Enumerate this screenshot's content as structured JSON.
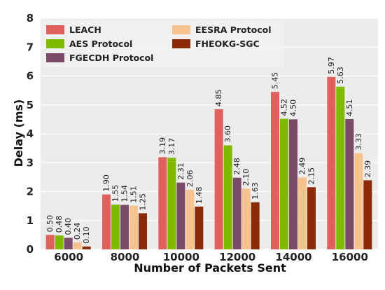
{
  "chart_data": {
    "type": "bar",
    "title": "",
    "xlabel": "Number of Packets Sent",
    "ylabel": "Delay (ms)",
    "ylim": [
      0,
      8
    ],
    "yticks": [
      0,
      1,
      2,
      3,
      4,
      5,
      6,
      7,
      8
    ],
    "grid": true,
    "legend_position": "top-left",
    "categories": [
      "6000",
      "8000",
      "10000",
      "12000",
      "14000",
      "16000"
    ],
    "series": [
      {
        "name": "LEACH",
        "color": "#e0605e",
        "values": [
          0.5,
          1.9,
          3.19,
          4.85,
          5.45,
          5.97
        ]
      },
      {
        "name": "AES Protocol",
        "color": "#7fba00",
        "values": [
          0.48,
          1.55,
          3.17,
          3.6,
          4.52,
          5.63
        ]
      },
      {
        "name": "FGECDH Protocol",
        "color": "#7a4a68",
        "values": [
          0.4,
          1.54,
          2.31,
          2.48,
          4.5,
          4.51
        ]
      },
      {
        "name": "EESRA Protocol",
        "color": "#f6c38e",
        "values": [
          0.24,
          1.51,
          2.06,
          2.1,
          2.49,
          3.33
        ]
      },
      {
        "name": "FHEOKG-SGC",
        "color": "#8b2a06",
        "values": [
          0.1,
          1.25,
          1.48,
          1.63,
          2.15,
          2.39
        ]
      }
    ],
    "value_labels": [
      [
        "0.50",
        "1.90",
        "3.19",
        "4.85",
        "5.45",
        "5.97"
      ],
      [
        "0.48",
        "1.55",
        "3.17",
        "3.60",
        "4.52",
        "5.63"
      ],
      [
        "0.40",
        "1.54",
        "2.31",
        "2.48",
        "4.50",
        "4.51"
      ],
      [
        "0.24",
        "1.51",
        "2.06",
        "2.10",
        "2.49",
        "3.33"
      ],
      [
        "0.10",
        "1.25",
        "1.48",
        "1.63",
        "2.15",
        "2.39"
      ]
    ]
  },
  "colors": {
    "plot_background": "#ececec",
    "grid": "#ffffff"
  }
}
